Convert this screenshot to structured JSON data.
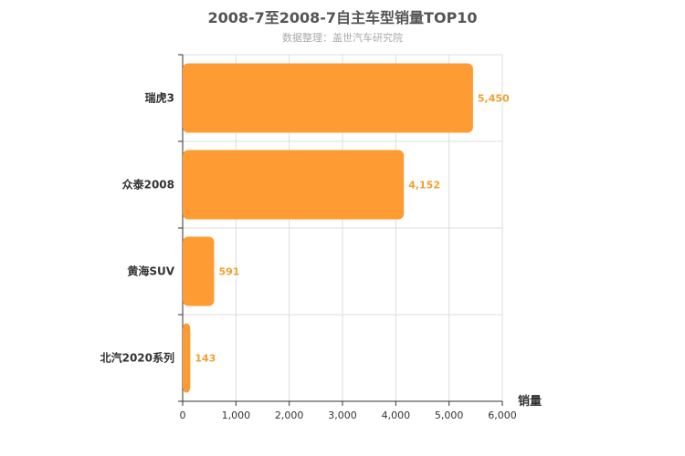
{
  "chart_data": {
    "type": "bar",
    "orientation": "horizontal",
    "title": "2008-7至2008-7自主车型销量TOP10",
    "subtitle": "数据整理：盖世汽车研究院",
    "categories": [
      "瑞虎3",
      "众泰2008",
      "黄海SUV",
      "北汽2020系列"
    ],
    "series": [
      {
        "values": [
          5450,
          4152,
          591,
          143
        ],
        "data_labels": [
          "5,450",
          "4,152",
          "591",
          "143"
        ]
      }
    ],
    "xlabel": "销量",
    "ylabel": "",
    "xlim": [
      0,
      6000
    ],
    "x_ticks": [
      0,
      1000,
      2000,
      3000,
      4000,
      5000,
      6000
    ],
    "x_tick_labels": [
      "0",
      "1,000",
      "2,000",
      "3,000",
      "4,000",
      "5,000",
      "6,000"
    ],
    "grid": true,
    "colors": {
      "bar": "#ff9b33",
      "data_label": "#f0a030",
      "grid": "#dddddd",
      "axis": "#333333"
    }
  }
}
